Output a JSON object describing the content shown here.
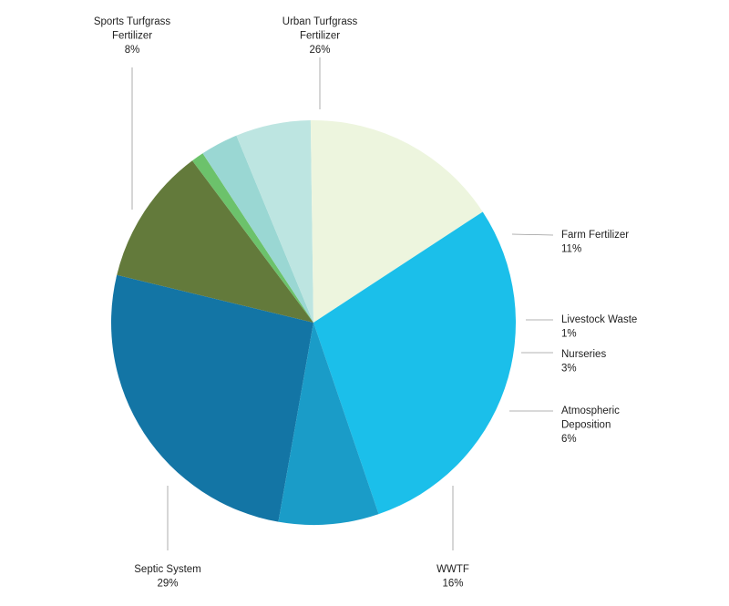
{
  "chart_data": {
    "type": "pie",
    "title": "",
    "value_unit": "%",
    "start_angle_deg": 190,
    "direction": "clockwise",
    "slices": [
      {
        "label_lines": [
          "Urban Turfgrass",
          "Fertilizer"
        ],
        "value": 26,
        "value_label": "26%",
        "color": "#1375a5"
      },
      {
        "label_lines": [
          "Farm Fertilizer"
        ],
        "value": 11,
        "value_label": "11%",
        "color": "#637a3b"
      },
      {
        "label_lines": [
          "Livestock Waste"
        ],
        "value": 1,
        "value_label": "1%",
        "color": "#6cc26b"
      },
      {
        "label_lines": [
          "Nurseries"
        ],
        "value": 3,
        "value_label": "3%",
        "color": "#9ad7d3"
      },
      {
        "label_lines": [
          "Atmospheric",
          "Deposition"
        ],
        "value": 6,
        "value_label": "6%",
        "color": "#bde5e1"
      },
      {
        "label_lines": [
          "WWTF"
        ],
        "value": 16,
        "value_label": "16%",
        "color": "#edf5de"
      },
      {
        "label_lines": [
          "Septic System"
        ],
        "value": 29,
        "value_label": "29%",
        "color": "#1bbfea"
      },
      {
        "label_lines": [
          "Sports Turfgrass",
          "Fertilizer"
        ],
        "value": 8,
        "value_label": "8%",
        "color": "#1a9cc8"
      }
    ]
  }
}
